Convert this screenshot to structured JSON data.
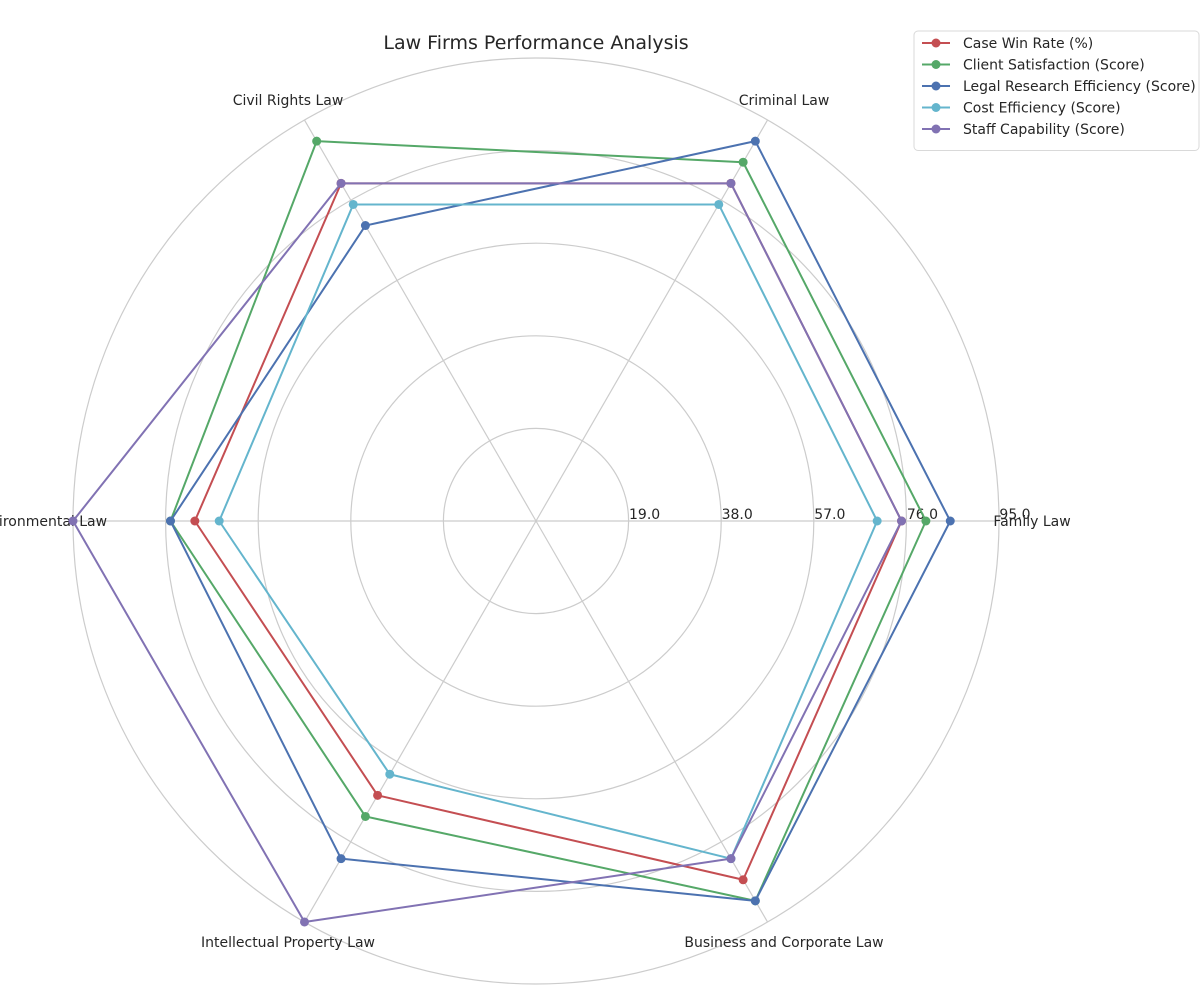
{
  "chart_data": {
    "type": "radar",
    "title": "Law Firms Performance Analysis",
    "categories": [
      "Family Law",
      "Criminal Law",
      "Civil Rights Law",
      "Environmental Law",
      "Intellectual Property Law",
      "Business and Corporate Law"
    ],
    "rmax": 95,
    "ticks": [
      "19.0",
      "38.0",
      "57.0",
      "76.0",
      "95.0"
    ],
    "tick_values": [
      19,
      38,
      57,
      76,
      95
    ],
    "grid": true,
    "legend_position": "top-right",
    "series": [
      {
        "name": "Case Win Rate (%)",
        "color": "#c44e52",
        "values": [
          75,
          80,
          80,
          70,
          65,
          85
        ]
      },
      {
        "name": "Client Satisfaction (Score)",
        "color": "#55a868",
        "values": [
          80,
          85,
          90,
          75,
          70,
          90
        ]
      },
      {
        "name": "Legal Research Efficiency (Score)",
        "color": "#4c72b0",
        "values": [
          85,
          90,
          70,
          75,
          80,
          90
        ]
      },
      {
        "name": "Cost Efficiency (Score)",
        "color": "#64b5cd",
        "values": [
          70,
          75,
          75,
          65,
          60,
          80
        ]
      },
      {
        "name": "Staff Capability (Score)",
        "color": "#8172b3",
        "values": [
          75,
          80,
          80,
          95,
          95,
          80
        ]
      }
    ]
  }
}
